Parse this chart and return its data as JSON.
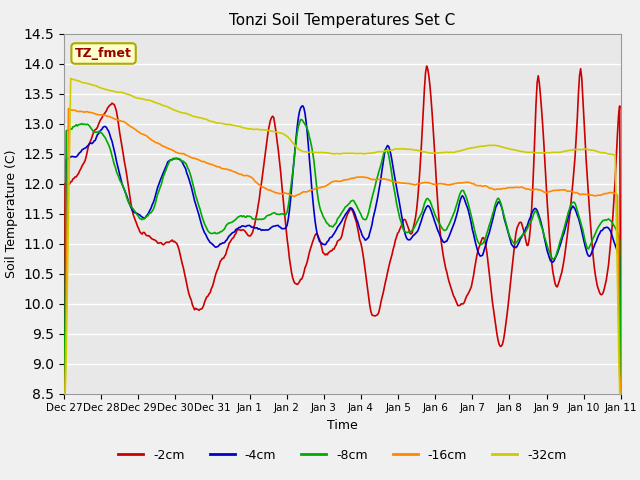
{
  "title": "Tonzi Soil Temperatures Set C",
  "xlabel": "Time",
  "ylabel": "Soil Temperature (C)",
  "ylim": [
    8.5,
    14.5
  ],
  "yticks": [
    8.5,
    9.0,
    9.5,
    10.0,
    10.5,
    11.0,
    11.5,
    12.0,
    12.5,
    13.0,
    13.5,
    14.0,
    14.5
  ],
  "xtick_labels": [
    "Dec 27",
    "Dec 28",
    "Dec 29",
    "Dec 30",
    "Dec 31",
    "Jan 1",
    "Jan 2",
    "Jan 3",
    "Jan 4",
    "Jan 5",
    "Jan 6",
    "Jan 7",
    "Jan 8",
    "Jan 9",
    "Jan 10",
    "Jan 11"
  ],
  "colors": {
    "-2cm": "#cc0000",
    "-4cm": "#0000cc",
    "-8cm": "#00aa00",
    "-16cm": "#ff8800",
    "-32cm": "#cccc00"
  },
  "legend_label": "TZ_fmet",
  "bg_color": "#e8e8e8",
  "grid_color": "#ffffff"
}
